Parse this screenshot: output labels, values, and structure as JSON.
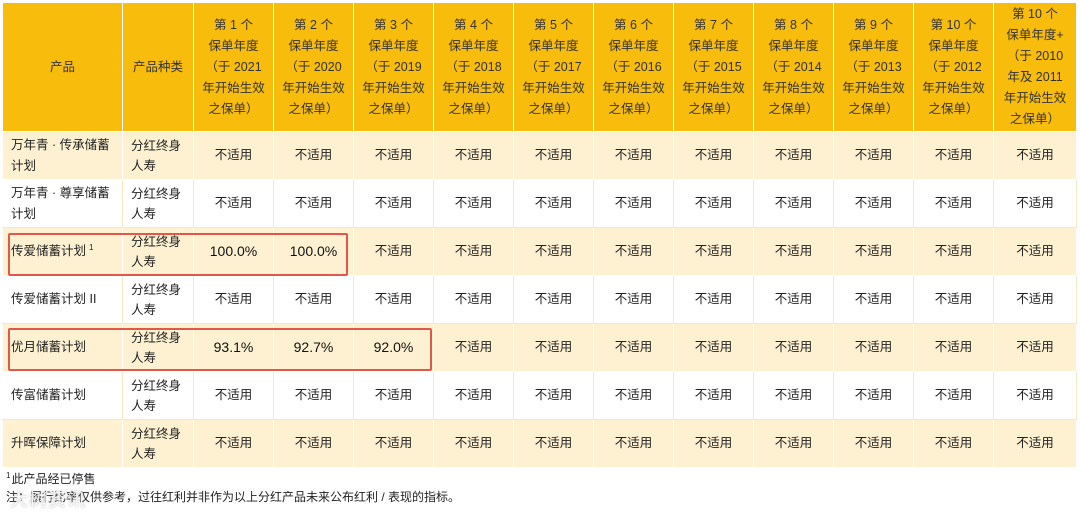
{
  "table": {
    "headers": [
      "产品",
      "产品种类",
      "第 1 个\n保单年度\n（于 2021\n年开始生效\n之保单）",
      "第 2 个\n保单年度\n（于 2020\n年开始生效\n之保单）",
      "第 3 个\n保单年度\n（于 2019\n年开始生效\n之保单）",
      "第 4 个\n保单年度\n（于 2018\n年开始生效\n之保单）",
      "第 5 个\n保单年度\n（于 2017\n年开始生效\n之保单）",
      "第 6 个\n保单年度\n（于 2016\n年开始生效\n之保单）",
      "第 7 个\n保单年度\n（于 2015\n年开始生效\n之保单）",
      "第 8 个\n保单年度\n（于 2014\n年开始生效\n之保单）",
      "第 9 个\n保单年度\n（于 2013\n年开始生效\n之保单）",
      "第 10 个\n保单年度\n（于 2012\n年开始生效\n之保单）",
      "第 10 个\n保单年度+\n（于 2010\n年及 2011\n年开始生效\n之保单）"
    ],
    "rows": [
      {
        "product": "万年青 · 传承储蓄计划",
        "sup": "",
        "category": "分红终身人寿",
        "values": [
          "不适用",
          "不适用",
          "不适用",
          "不适用",
          "不适用",
          "不适用",
          "不适用",
          "不适用",
          "不适用",
          "不适用",
          "不适用"
        ]
      },
      {
        "product": "万年青 · 尊享储蓄计划",
        "sup": "",
        "category": "分红终身人寿",
        "values": [
          "不适用",
          "不适用",
          "不适用",
          "不适用",
          "不适用",
          "不适用",
          "不适用",
          "不适用",
          "不适用",
          "不适用",
          "不适用"
        ]
      },
      {
        "product": "传爱储蓄计划",
        "sup": "1",
        "category": "分红终身人寿",
        "values": [
          "100.0%",
          "100.0%",
          "不适用",
          "不适用",
          "不适用",
          "不适用",
          "不适用",
          "不适用",
          "不适用",
          "不适用",
          "不适用"
        ]
      },
      {
        "product": "传爱储蓄计划 II",
        "sup": "",
        "category": "分红终身人寿",
        "values": [
          "不适用",
          "不适用",
          "不适用",
          "不适用",
          "不适用",
          "不适用",
          "不适用",
          "不适用",
          "不适用",
          "不适用",
          "不适用"
        ]
      },
      {
        "product": "优月储蓄计划",
        "sup": "",
        "category": "分红终身人寿",
        "values": [
          "93.1%",
          "92.7%",
          "92.0%",
          "不适用",
          "不适用",
          "不适用",
          "不适用",
          "不适用",
          "不适用",
          "不适用",
          "不适用"
        ]
      },
      {
        "product": "传富储蓄计划",
        "sup": "",
        "category": "分红终身人寿",
        "values": [
          "不适用",
          "不适用",
          "不适用",
          "不适用",
          "不适用",
          "不适用",
          "不适用",
          "不适用",
          "不适用",
          "不适用",
          "不适用"
        ]
      },
      {
        "product": "升晖保障计划",
        "sup": "",
        "category": "分红终身人寿",
        "values": [
          "不适用",
          "不适用",
          "不适用",
          "不适用",
          "不适用",
          "不适用",
          "不适用",
          "不适用",
          "不适用",
          "不适用",
          "不适用"
        ]
      }
    ]
  },
  "footnotes": {
    "note1_sup": "1",
    "note1_text": "此产品经已停售",
    "note2_text": "注：履行比率仅供参考，过往红利并非作为以上分红产品未来公布红利 / 表现的指标。"
  },
  "watermark": "大树资讯",
  "colors": {
    "header": "#f7bc0c",
    "row_tint": "#fdf1d2",
    "highlight": "#e0584a"
  }
}
